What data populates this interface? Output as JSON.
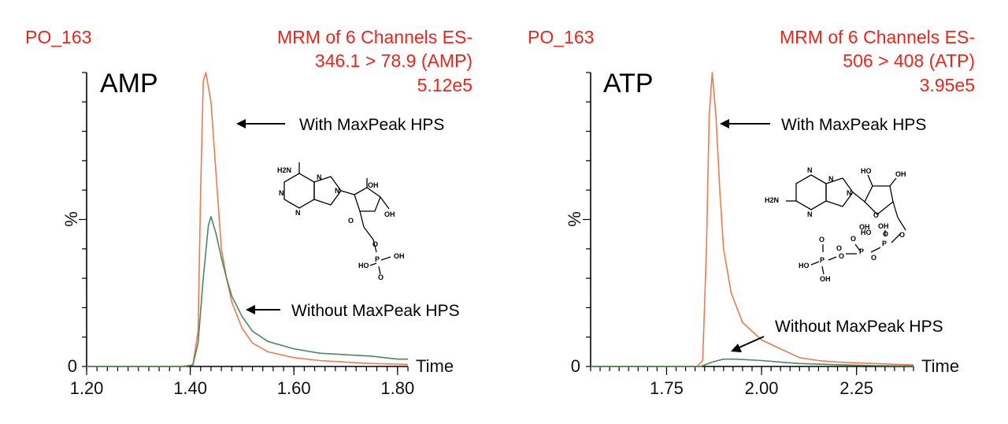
{
  "colors": {
    "with": "#ee7a50",
    "without": "#4a8a5e",
    "header": "#e8261c"
  },
  "chart_data": [
    {
      "type": "line",
      "sample": "PO_163",
      "header_lines": [
        "MRM of 6 Channels ES-",
        "346.1 > 78.9 (AMP)",
        "5.12e5"
      ],
      "compound": "AMP",
      "ylabel": "%",
      "y_zero_label": "0",
      "xlabel": "Time",
      "xlim": [
        1.2,
        1.82
      ],
      "ylim": [
        0,
        100
      ],
      "x_tick_labels": [
        1.2,
        1.4,
        1.6,
        1.8
      ],
      "x_tick_text": [
        "1.20",
        "1.40",
        "1.60",
        "1.80"
      ],
      "x_minor_step": 0.02,
      "y_tick_values": [
        0,
        10,
        20,
        30,
        40,
        50,
        60,
        70,
        80,
        90,
        100
      ],
      "y_label_value": 50,
      "series": [
        {
          "color": "#ee7a50",
          "x": [
            1.2,
            1.38,
            1.405,
            1.415,
            1.42,
            1.425,
            1.43,
            1.44,
            1.45,
            1.46,
            1.47,
            1.48,
            1.5,
            1.52,
            1.55,
            1.6,
            1.65,
            1.7,
            1.75,
            1.8,
            1.82
          ],
          "y": [
            0,
            0,
            0.5,
            12,
            60,
            97,
            100,
            90,
            65,
            40,
            30,
            22,
            13,
            8,
            5,
            3,
            2,
            1.5,
            1,
            0.8,
            0.7
          ]
        },
        {
          "color": "#4a8a5e",
          "x": [
            1.2,
            1.39,
            1.405,
            1.415,
            1.425,
            1.435,
            1.44,
            1.45,
            1.46,
            1.47,
            1.48,
            1.5,
            1.52,
            1.55,
            1.6,
            1.65,
            1.7,
            1.75,
            1.8,
            1.82
          ],
          "y": [
            0,
            0,
            0.5,
            8,
            30,
            48,
            51,
            45,
            37,
            30,
            24,
            17,
            12,
            8.5,
            6,
            4.5,
            4,
            3.5,
            2.5,
            2.5
          ]
        }
      ],
      "annotations": [
        {
          "text": "With MaxPeak HPS",
          "target_series": 0
        },
        {
          "text": "Without MaxPeak HPS",
          "target_series": 1
        }
      ]
    },
    {
      "type": "line",
      "sample": "PO_163",
      "header_lines": [
        "MRM of 6 Channels ES-",
        "506 > 408 (ATP)",
        "3.95e5"
      ],
      "compound": "ATP",
      "ylabel": "%",
      "y_zero_label": "0",
      "xlabel": "Time",
      "xlim": [
        1.55,
        2.4
      ],
      "ylim": [
        0,
        100
      ],
      "x_tick_labels": [
        1.75,
        2.0,
        2.25
      ],
      "x_tick_text": [
        "1.75",
        "2.00",
        "2.25"
      ],
      "x_minor_step": 0.025,
      "y_tick_values": [
        0,
        10,
        20,
        30,
        40,
        50,
        60,
        70,
        80,
        90,
        100
      ],
      "y_label_value": 50,
      "series": [
        {
          "color": "#ee7a50",
          "x": [
            1.55,
            1.83,
            1.845,
            1.855,
            1.862,
            1.87,
            1.88,
            1.89,
            1.9,
            1.92,
            1.95,
            2.0,
            2.05,
            2.1,
            2.15,
            2.2,
            2.3,
            2.4
          ],
          "y": [
            0,
            0,
            2,
            40,
            85,
            100,
            85,
            60,
            40,
            25,
            15,
            9,
            6,
            3,
            2,
            1.5,
            1,
            0.5
          ]
        },
        {
          "color": "#4a8a5e",
          "x": [
            1.55,
            1.84,
            1.87,
            1.9,
            1.93,
            1.96,
            2.0,
            2.05,
            2.1,
            2.2,
            2.3,
            2.4
          ],
          "y": [
            0,
            0,
            1.5,
            2.5,
            2.5,
            2.3,
            2,
            1.5,
            1,
            0.6,
            0.3,
            0.2
          ]
        }
      ],
      "annotations": [
        {
          "text": "With MaxPeak HPS",
          "target_series": 0
        },
        {
          "text": "Without MaxPeak HPS",
          "target_series": 1
        }
      ]
    }
  ],
  "structures": [
    {
      "compound": "AMP",
      "labels": [
        "H2N",
        "N",
        "N",
        "N",
        "N",
        "O",
        "OH",
        "OH",
        "O",
        "P",
        "OH",
        "HO",
        "O"
      ]
    },
    {
      "compound": "ATP",
      "labels": [
        "H2N",
        "N",
        "N",
        "N",
        "N",
        "O",
        "HO",
        "OH",
        "OH",
        "O",
        "OH",
        "O",
        "P",
        "O",
        "HO",
        "P",
        "O",
        "O",
        "P",
        "O",
        "HO",
        "O",
        "OH"
      ]
    }
  ]
}
